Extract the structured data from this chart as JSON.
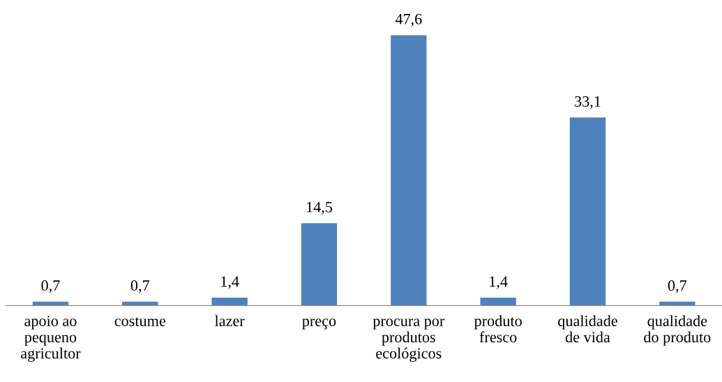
{
  "chart_data": {
    "type": "bar",
    "categories": [
      "apoio ao\npequeno\nagricultor",
      "costume",
      "lazer",
      "preço",
      "procura por\nprodutos\necológicos",
      "produto\nfresco",
      "qualidade\nde vida",
      "qualidade\ndo produto"
    ],
    "values": [
      0.7,
      0.7,
      1.4,
      14.5,
      47.6,
      1.4,
      33.1,
      0.7
    ],
    "value_labels": [
      "0,7",
      "0,7",
      "1,4",
      "14,5",
      "47,6",
      "1,4",
      "33,1",
      "0,7"
    ],
    "color": "#4f81bd",
    "tick_labels": "x",
    "grid": false,
    "legend": false
  }
}
